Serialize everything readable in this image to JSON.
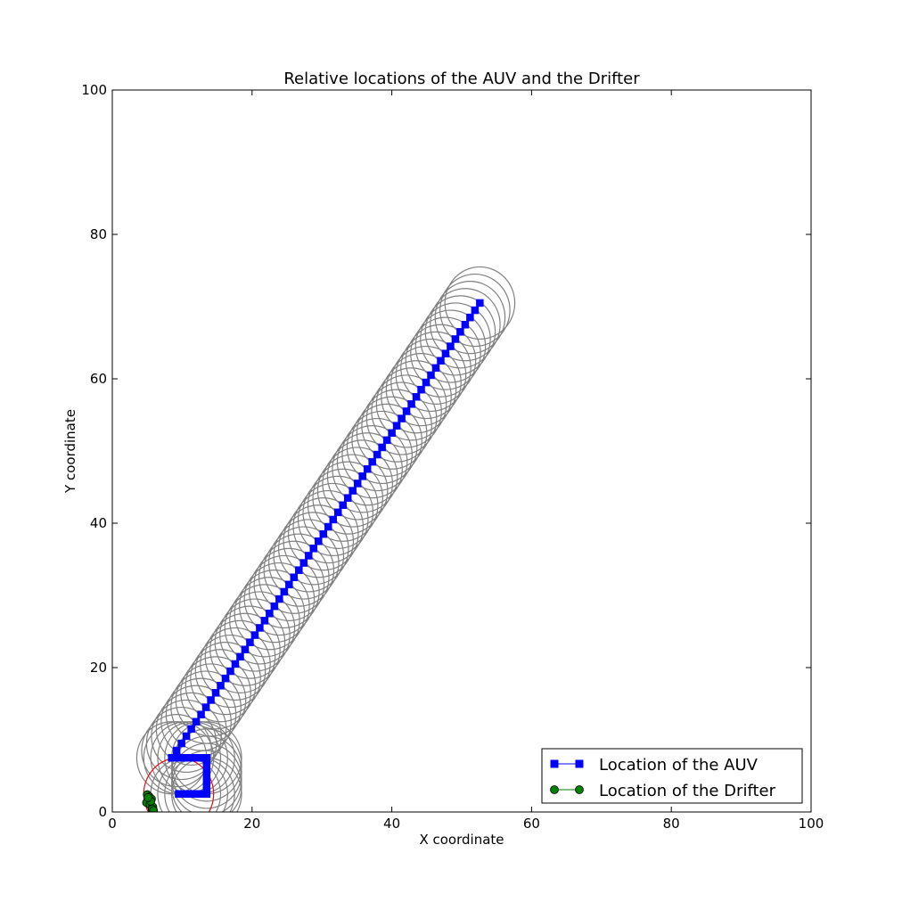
{
  "chart_data": {
    "type": "line",
    "title": "Relative locations of the AUV and the Drifter",
    "xlabel": "X coordinate",
    "ylabel": "Y coordinate",
    "xlim": [
      0,
      100
    ],
    "ylim": [
      0,
      100
    ],
    "xticks": [
      "0",
      "20",
      "40",
      "60",
      "80",
      "100"
    ],
    "yticks": [
      "0",
      "20",
      "40",
      "60",
      "80",
      "100"
    ],
    "grid": false,
    "legend_position": "lower-right",
    "colors": {
      "auv": "#0000ff",
      "drifter": "#008000",
      "range_circles": "#808080",
      "drifter_range_circle": "#ff0000",
      "axes": "#000000"
    },
    "auv_range_radius": 5,
    "drifter_range_radius": 5,
    "series": [
      {
        "name": "Location of the AUV",
        "marker": "square",
        "x": [
          9.5,
          10.5,
          11.5,
          12.5,
          13.5,
          13.5,
          13.5,
          13.5,
          13.5,
          13.5,
          12.5,
          11.5,
          10.5,
          9.5,
          8.5,
          9.2,
          9.9,
          10.6,
          11.3,
          12.0,
          12.7,
          13.4,
          14.1,
          14.8,
          15.5,
          16.2,
          16.9,
          17.6,
          18.3,
          19.0,
          19.7,
          20.4,
          21.1,
          21.8,
          22.5,
          23.2,
          23.9,
          24.6,
          25.3,
          26.0,
          26.7,
          27.4,
          28.1,
          28.8,
          29.5,
          30.2,
          30.9,
          31.6,
          32.3,
          33.0,
          33.7,
          34.4,
          35.1,
          35.8,
          36.5,
          37.2,
          37.9,
          38.6,
          39.3,
          40.0,
          40.7,
          41.4,
          42.1,
          42.8,
          43.5,
          44.2,
          44.9,
          45.6,
          46.3,
          47.0,
          47.7,
          48.4,
          49.1,
          49.8,
          50.5,
          51.2,
          51.9,
          52.6
        ],
        "y": [
          2.5,
          2.5,
          2.5,
          2.5,
          2.5,
          3.5,
          4.5,
          5.5,
          6.5,
          7.5,
          7.5,
          7.5,
          7.5,
          7.5,
          7.5,
          8.5,
          9.5,
          10.5,
          11.5,
          12.5,
          13.5,
          14.5,
          15.5,
          16.5,
          17.5,
          18.5,
          19.5,
          20.5,
          21.5,
          22.5,
          23.5,
          24.5,
          25.5,
          26.5,
          27.5,
          28.5,
          29.5,
          30.5,
          31.5,
          32.5,
          33.5,
          34.5,
          35.5,
          36.5,
          37.5,
          38.5,
          39.5,
          40.5,
          41.5,
          42.5,
          43.5,
          44.5,
          45.5,
          46.5,
          47.5,
          48.5,
          49.5,
          50.5,
          51.5,
          52.5,
          53.5,
          54.5,
          55.5,
          56.5,
          57.5,
          58.5,
          59.5,
          60.5,
          61.5,
          62.5,
          63.5,
          64.5,
          65.5,
          66.5,
          67.5,
          68.5,
          69.5,
          70.5
        ]
      },
      {
        "name": "Location of the Drifter",
        "marker": "circle",
        "x": [
          5.0,
          5.3,
          5.6,
          5.2,
          4.9,
          5.4,
          5.8,
          5.5,
          5.1,
          5.7,
          5.9
        ],
        "y": [
          2.4,
          2.1,
          1.8,
          1.6,
          1.3,
          1.0,
          0.7,
          1.5,
          2.0,
          0.4,
          0.2
        ]
      }
    ]
  }
}
